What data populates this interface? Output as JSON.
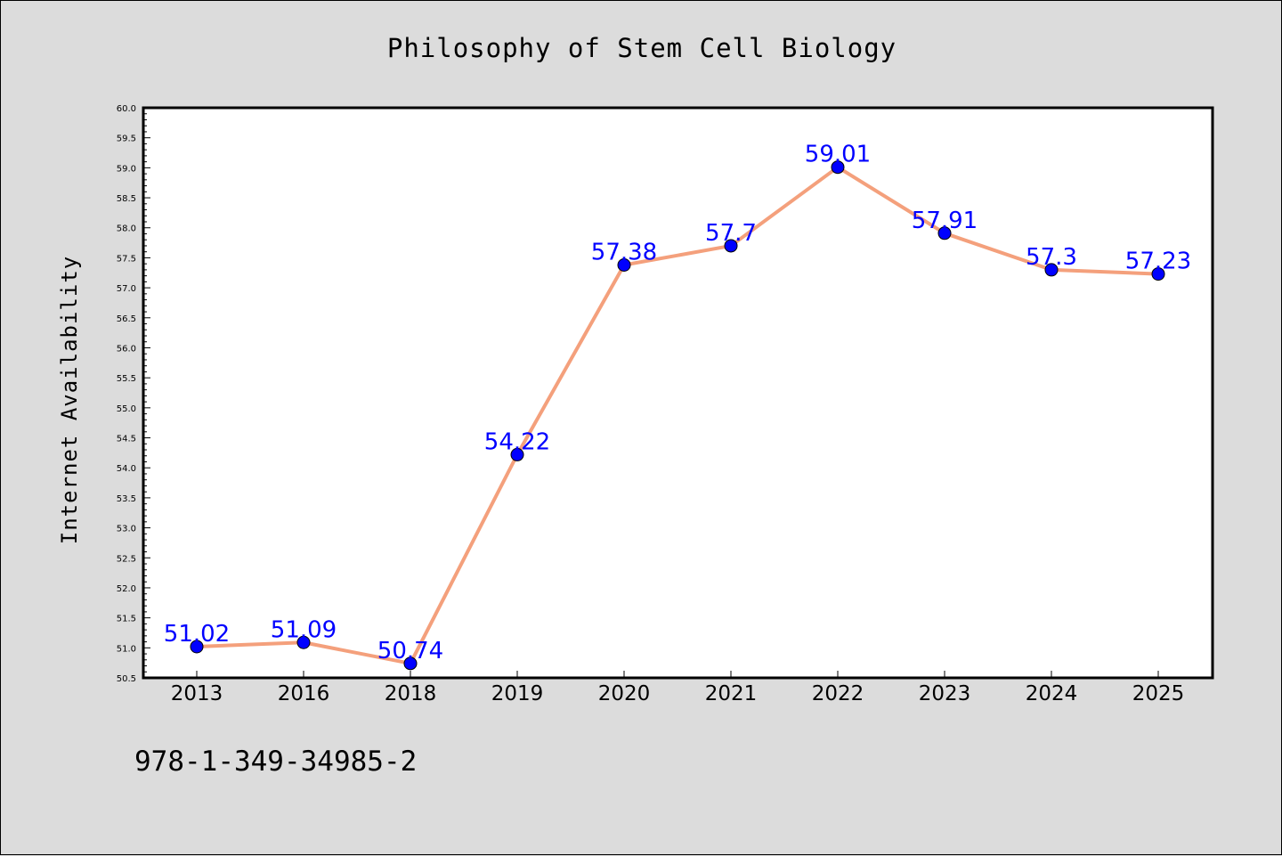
{
  "chart_data": {
    "type": "line",
    "title": "Philosophy of Stem Cell Biology",
    "ylabel": "Internet Availability",
    "xlabel": "",
    "categories": [
      "2013",
      "2016",
      "2018",
      "2019",
      "2020",
      "2021",
      "2022",
      "2023",
      "2024",
      "2025"
    ],
    "series": [
      {
        "values": [
          51.02,
          51.09,
          50.74,
          54.22,
          57.38,
          57.7,
          59.01,
          57.91,
          57.3,
          57.23
        ],
        "labels": [
          "51.02",
          "51.09",
          "50.74",
          "54.22",
          "57.38",
          "57.7",
          "59.01",
          "57.91",
          "57.3",
          "57.23"
        ],
        "line_color": "#f4a07c",
        "marker_color": "#0000ff"
      }
    ],
    "ylim": [
      50.5,
      60.0
    ],
    "yticks": [
      "50.5",
      "51.0",
      "51.5",
      "52.0",
      "52.5",
      "53.0",
      "53.5",
      "54.0",
      "54.5",
      "55.0",
      "55.5",
      "56.0",
      "56.5",
      "57.0",
      "57.5",
      "58.0",
      "58.5",
      "59.0",
      "59.5",
      "60.0"
    ],
    "ytick_values": [
      50.5,
      51.0,
      51.5,
      52.0,
      52.5,
      53.0,
      53.5,
      54.0,
      54.5,
      55.0,
      55.5,
      56.0,
      56.5,
      57.0,
      57.5,
      58.0,
      58.5,
      59.0,
      59.5,
      60.0
    ],
    "grid": false,
    "label_color": "#0000ff",
    "background": "#dcdcdc",
    "plot_background": "#ffffff"
  },
  "footer": {
    "isbn": "978-1-349-34985-2"
  }
}
